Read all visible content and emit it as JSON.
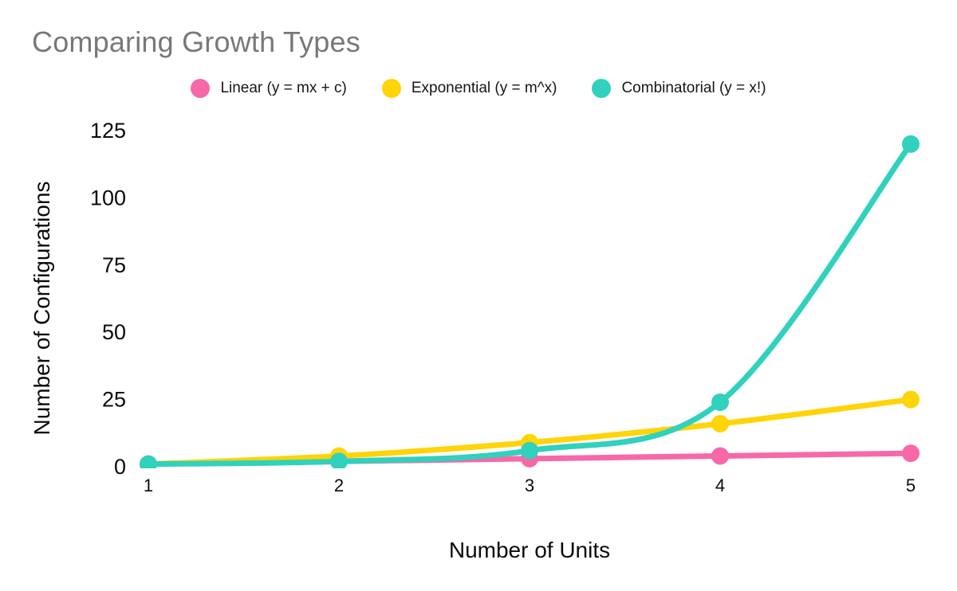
{
  "title": "Comparing Growth Types",
  "title_color": "#787878",
  "legend": {
    "items": [
      {
        "label": "Linear (y = mx + c)",
        "color": "#F768A9"
      },
      {
        "label": "Exponential (y = m^x)",
        "color": "#FFD408"
      },
      {
        "label": "Combinatorial (y = x!)",
        "color": "#30D1BD"
      }
    ]
  },
  "chart_data": {
    "type": "line",
    "title": "Comparing Growth Types",
    "x": [
      1,
      2,
      3,
      4,
      5
    ],
    "xticks": [
      "1",
      "2",
      "3",
      "4",
      "5"
    ],
    "yticks": [
      0,
      25,
      50,
      75,
      100,
      125
    ],
    "ylim": [
      0,
      125
    ],
    "xlabel": "Number of Units",
    "ylabel": "Number of Configurations",
    "grid": false,
    "legend_position": "top",
    "smooth": true,
    "series": [
      {
        "name": "Linear (y = mx + c)",
        "color": "#F768A9",
        "values": [
          1,
          2,
          3,
          4,
          5
        ]
      },
      {
        "name": "Exponential (y = m^x)",
        "color": "#FFD408",
        "values": [
          1,
          4,
          9,
          16,
          25
        ]
      },
      {
        "name": "Combinatorial (y = x!)",
        "color": "#30D1BD",
        "values": [
          1,
          2,
          6,
          24,
          120
        ]
      }
    ]
  }
}
